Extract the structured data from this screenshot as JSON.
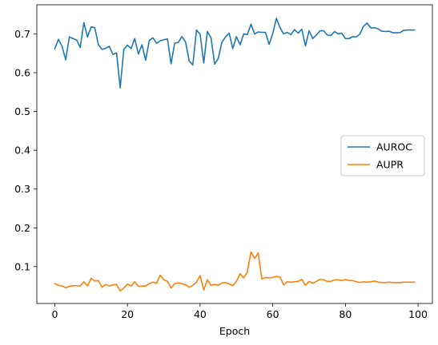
{
  "chart_data": {
    "type": "line",
    "title": "",
    "xlabel": "Epoch",
    "ylabel": "",
    "xlim": [
      -4.95,
      103.95
    ],
    "ylim": [
      0.005,
      0.775
    ],
    "xticks": [
      0,
      20,
      40,
      60,
      80,
      100
    ],
    "xtick_labels": [
      "0",
      "20",
      "40",
      "60",
      "80",
      "100"
    ],
    "yticks": [
      0.1,
      0.2,
      0.3,
      0.4,
      0.5,
      0.6,
      0.7
    ],
    "ytick_labels": [
      "0.1",
      "0.2",
      "0.3",
      "0.4",
      "0.5",
      "0.6",
      "0.7"
    ],
    "grid": false,
    "legend_position": "center-right",
    "x": [
      0,
      1,
      2,
      3,
      4,
      5,
      6,
      7,
      8,
      9,
      10,
      11,
      12,
      13,
      14,
      15,
      16,
      17,
      18,
      19,
      20,
      21,
      22,
      23,
      24,
      25,
      26,
      27,
      28,
      29,
      30,
      31,
      32,
      33,
      34,
      35,
      36,
      37,
      38,
      39,
      40,
      41,
      42,
      43,
      44,
      45,
      46,
      47,
      48,
      49,
      50,
      51,
      52,
      53,
      54,
      55,
      56,
      57,
      58,
      59,
      60,
      61,
      62,
      63,
      64,
      65,
      66,
      67,
      68,
      69,
      70,
      71,
      72,
      73,
      74,
      75,
      76,
      77,
      78,
      79,
      80,
      81,
      82,
      83,
      84,
      85,
      86,
      87,
      88,
      89,
      90,
      91,
      92,
      93,
      94,
      95,
      96,
      97,
      98,
      99
    ],
    "series": [
      {
        "name": "AUROC",
        "color": "#1f77b4",
        "values": [
          0.662,
          0.686,
          0.668,
          0.633,
          0.692,
          0.688,
          0.684,
          0.665,
          0.729,
          0.692,
          0.718,
          0.716,
          0.672,
          0.66,
          0.663,
          0.668,
          0.647,
          0.651,
          0.561,
          0.66,
          0.671,
          0.662,
          0.688,
          0.648,
          0.672,
          0.632,
          0.683,
          0.69,
          0.676,
          0.682,
          0.685,
          0.687,
          0.623,
          0.676,
          0.678,
          0.693,
          0.679,
          0.63,
          0.62,
          0.71,
          0.699,
          0.625,
          0.706,
          0.69,
          0.622,
          0.637,
          0.678,
          0.692,
          0.702,
          0.662,
          0.693,
          0.672,
          0.7,
          0.698,
          0.725,
          0.7,
          0.705,
          0.704,
          0.704,
          0.673,
          0.701,
          0.74,
          0.716,
          0.7,
          0.704,
          0.698,
          0.711,
          0.702,
          0.712,
          0.669,
          0.708,
          0.688,
          0.697,
          0.708,
          0.708,
          0.697,
          0.696,
          0.706,
          0.7,
          0.702,
          0.688,
          0.688,
          0.693,
          0.692,
          0.7,
          0.72,
          0.728,
          0.715,
          0.716,
          0.713,
          0.707,
          0.706,
          0.707,
          0.703,
          0.703,
          0.703,
          0.709,
          0.71,
          0.71,
          0.71
        ]
      },
      {
        "name": "AUPR",
        "color": "#ff7f0e",
        "values": [
          0.056,
          0.052,
          0.05,
          0.046,
          0.049,
          0.051,
          0.051,
          0.05,
          0.061,
          0.05,
          0.07,
          0.063,
          0.064,
          0.047,
          0.054,
          0.05,
          0.053,
          0.054,
          0.037,
          0.045,
          0.055,
          0.05,
          0.061,
          0.049,
          0.05,
          0.05,
          0.056,
          0.06,
          0.057,
          0.078,
          0.066,
          0.062,
          0.045,
          0.056,
          0.058,
          0.056,
          0.053,
          0.047,
          0.052,
          0.06,
          0.077,
          0.04,
          0.066,
          0.052,
          0.054,
          0.052,
          0.058,
          0.059,
          0.055,
          0.051,
          0.062,
          0.082,
          0.071,
          0.086,
          0.138,
          0.121,
          0.135,
          0.068,
          0.072,
          0.071,
          0.072,
          0.075,
          0.073,
          0.053,
          0.061,
          0.06,
          0.061,
          0.062,
          0.067,
          0.052,
          0.062,
          0.057,
          0.062,
          0.067,
          0.066,
          0.062,
          0.062,
          0.066,
          0.066,
          0.064,
          0.067,
          0.064,
          0.064,
          0.061,
          0.059,
          0.061,
          0.06,
          0.061,
          0.063,
          0.06,
          0.059,
          0.059,
          0.06,
          0.059,
          0.059,
          0.059,
          0.06,
          0.06,
          0.06,
          0.06
        ]
      }
    ]
  }
}
